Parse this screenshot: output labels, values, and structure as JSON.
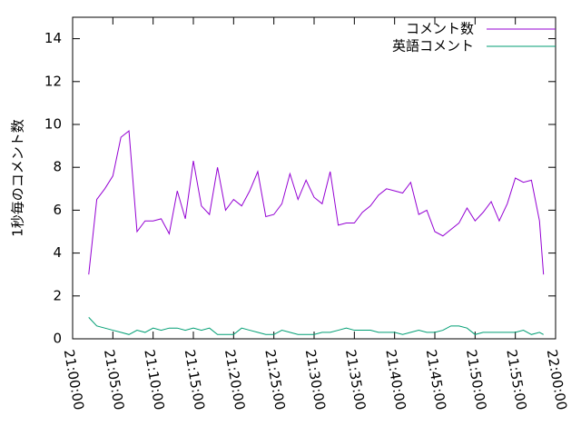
{
  "chart_data": {
    "type": "line",
    "ylabel": "1秒毎のコメント数",
    "x": [
      "21:02:00",
      "21:03:00",
      "21:04:00",
      "21:05:00",
      "21:06:00",
      "21:07:00",
      "21:08:00",
      "21:09:00",
      "21:10:00",
      "21:11:00",
      "21:12:00",
      "21:13:00",
      "21:14:00",
      "21:15:00",
      "21:16:00",
      "21:17:00",
      "21:18:00",
      "21:19:00",
      "21:20:00",
      "21:21:00",
      "21:22:00",
      "21:23:00",
      "21:24:00",
      "21:25:00",
      "21:26:00",
      "21:27:00",
      "21:28:00",
      "21:29:00",
      "21:30:00",
      "21:31:00",
      "21:32:00",
      "21:33:00",
      "21:34:00",
      "21:35:00",
      "21:36:00",
      "21:37:00",
      "21:38:00",
      "21:39:00",
      "21:40:00",
      "21:41:00",
      "21:42:00",
      "21:43:00",
      "21:44:00",
      "21:45:00",
      "21:46:00",
      "21:47:00",
      "21:48:00",
      "21:49:00",
      "21:50:00",
      "21:51:00",
      "21:52:00",
      "21:53:00",
      "21:54:00",
      "21:55:00",
      "21:56:00",
      "21:57:00",
      "21:58:00",
      "21:58:30"
    ],
    "series": [
      {
        "name": "コメント数",
        "color": "#9400d3",
        "values": [
          3.0,
          6.5,
          7.0,
          7.6,
          9.4,
          9.7,
          5.0,
          5.5,
          5.5,
          5.6,
          4.9,
          6.9,
          5.6,
          8.3,
          6.2,
          5.8,
          8.0,
          6.0,
          6.5,
          6.2,
          6.9,
          7.8,
          5.7,
          5.8,
          6.3,
          7.7,
          6.5,
          7.4,
          6.6,
          6.3,
          7.8,
          5.3,
          5.4,
          5.4,
          5.9,
          6.2,
          6.7,
          7.0,
          6.9,
          6.8,
          7.3,
          5.8,
          6.0,
          5.0,
          4.8,
          5.1,
          5.4,
          6.1,
          5.5,
          5.9,
          6.4,
          5.5,
          6.3,
          7.5,
          7.3,
          7.4,
          5.5,
          3.0
        ]
      },
      {
        "name": "英語コメント",
        "color": "#009e73",
        "values": [
          1.0,
          0.6,
          0.5,
          0.4,
          0.3,
          0.2,
          0.4,
          0.3,
          0.5,
          0.4,
          0.5,
          0.5,
          0.4,
          0.5,
          0.4,
          0.5,
          0.2,
          0.2,
          0.2,
          0.5,
          0.4,
          0.3,
          0.2,
          0.2,
          0.4,
          0.3,
          0.2,
          0.2,
          0.2,
          0.3,
          0.3,
          0.4,
          0.5,
          0.4,
          0.4,
          0.4,
          0.3,
          0.3,
          0.3,
          0.2,
          0.3,
          0.4,
          0.3,
          0.3,
          0.4,
          0.6,
          0.6,
          0.5,
          0.2,
          0.3,
          0.3,
          0.3,
          0.3,
          0.3,
          0.4,
          0.2,
          0.3,
          0.2
        ]
      }
    ],
    "xlim": [
      "21:00:00",
      "22:00:00"
    ],
    "xticks": [
      "21:00:00",
      "21:05:00",
      "21:10:00",
      "21:15:00",
      "21:20:00",
      "21:25:00",
      "21:30:00",
      "21:35:00",
      "21:40:00",
      "21:45:00",
      "21:50:00",
      "21:55:00",
      "22:00:00"
    ],
    "ylim": [
      0,
      15
    ],
    "yticks": [
      0,
      2,
      4,
      6,
      8,
      10,
      12,
      14
    ],
    "legend": "top-right"
  }
}
